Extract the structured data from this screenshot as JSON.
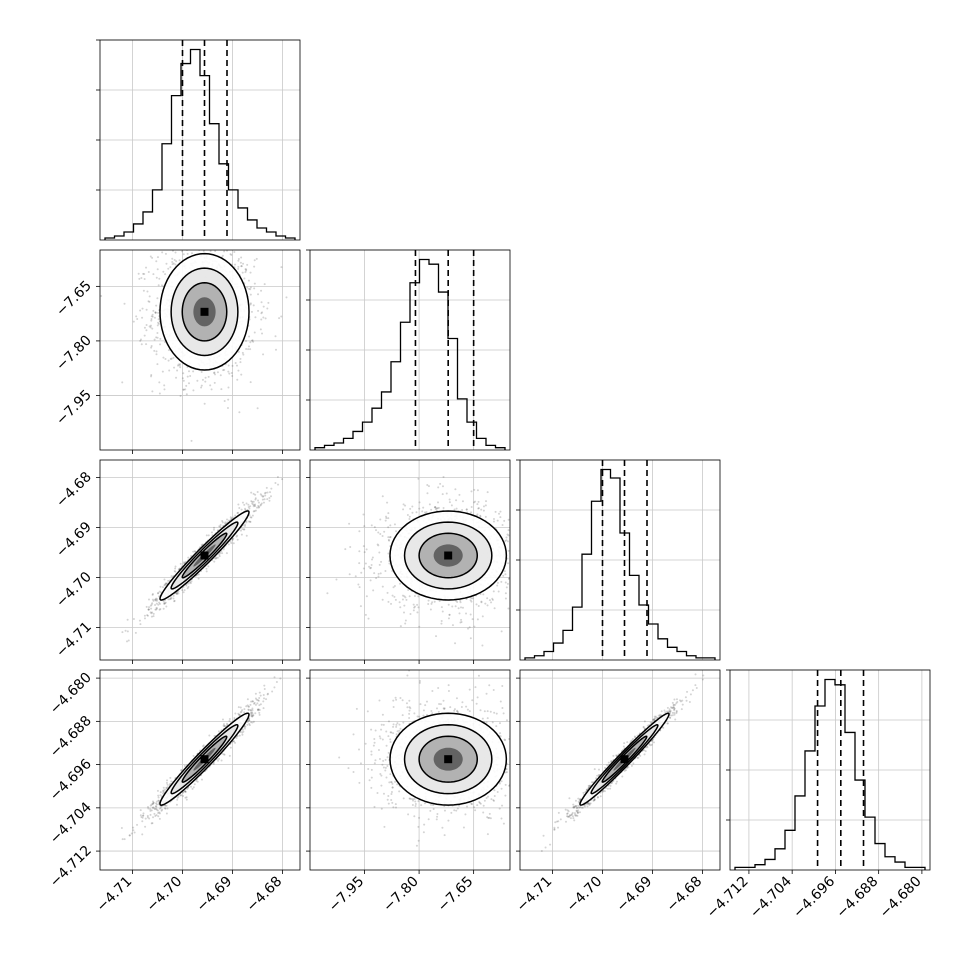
{
  "chart_data": {
    "type": "corner",
    "grid": true,
    "params": [
      {
        "name": "",
        "range": [
          -4.7165,
          -4.6765
        ],
        "quantiles": [
          -4.7,
          -4.6956,
          -4.6911
        ],
        "x_ticks": [
          -4.71,
          -4.7,
          -4.69,
          -4.68
        ],
        "x_tick_labels": [
          "−4.71",
          "−4.70",
          "−4.69",
          "−4.68"
        ],
        "y_ticks": [],
        "y_tick_labels": [],
        "hist_bins": [
          1,
          2,
          4,
          8,
          14,
          25,
          48,
          72,
          88,
          95,
          82,
          58,
          38,
          25,
          16,
          10,
          6,
          4,
          2,
          1
        ]
      },
      {
        "name": "",
        "range": [
          -8.1,
          -7.55
        ],
        "quantiles": [
          -7.81,
          -7.72,
          -7.65
        ],
        "x_ticks": [
          -7.95,
          -7.8,
          -7.65
        ],
        "x_tick_labels": [
          "−7.95",
          "−7.80",
          "−7.65"
        ],
        "y_ticks": [
          -7.65,
          -7.8,
          -7.95
        ],
        "y_tick_labels": [
          "−7.65",
          "−7.80",
          "−7.95"
        ],
        "hist_bins": [
          1,
          2,
          3,
          5,
          8,
          12,
          18,
          25,
          38,
          55,
          72,
          82,
          80,
          68,
          48,
          22,
          12,
          5,
          2,
          1
        ]
      },
      {
        "name": "",
        "range": [
          -4.7165,
          -4.6765
        ],
        "quantiles": [
          -4.7,
          -4.6956,
          -4.6911
        ],
        "x_ticks": [
          -4.71,
          -4.7,
          -4.69,
          -4.68
        ],
        "x_tick_labels": [
          "−4.71",
          "−4.70",
          "−4.69",
          "−4.68"
        ],
        "y_ticks": [
          -4.68,
          -4.69,
          -4.7,
          -4.71
        ],
        "y_tick_labels": [
          "−4.68",
          "−4.69",
          "−4.70",
          "−4.71"
        ],
        "hist_bins": [
          1,
          2,
          4,
          8,
          14,
          25,
          50,
          75,
          90,
          86,
          60,
          40,
          26,
          17,
          10,
          6,
          4,
          2,
          1,
          1
        ]
      },
      {
        "name": "",
        "range": [
          -4.7155,
          -4.6785
        ],
        "quantiles": [
          -4.6993,
          -4.695,
          -4.6908
        ],
        "x_ticks": [
          -4.712,
          -4.704,
          -4.696,
          -4.688,
          -4.68
        ],
        "x_tick_labels": [
          "−4.712",
          "−4.704",
          "−4.696",
          "−4.688",
          "−4.680"
        ],
        "y_ticks": [
          -4.68,
          -4.688,
          -4.696,
          -4.704,
          -4.712
        ],
        "y_tick_labels": [
          "−4.680",
          "−4.688",
          "−4.696",
          "−4.704",
          "−4.712"
        ],
        "hist_bins": [
          1,
          1,
          2,
          4,
          8,
          15,
          28,
          45,
          62,
          72,
          70,
          52,
          34,
          20,
          10,
          5,
          3,
          1,
          1
        ]
      }
    ],
    "correlations": [
      [
        1.0,
        0.0,
        0.97,
        0.97
      ],
      [
        0.0,
        1.0,
        0.0,
        0.0
      ],
      [
        0.97,
        0.0,
        1.0,
        0.98
      ],
      [
        0.97,
        0.0,
        0.98,
        1.0
      ]
    ]
  }
}
